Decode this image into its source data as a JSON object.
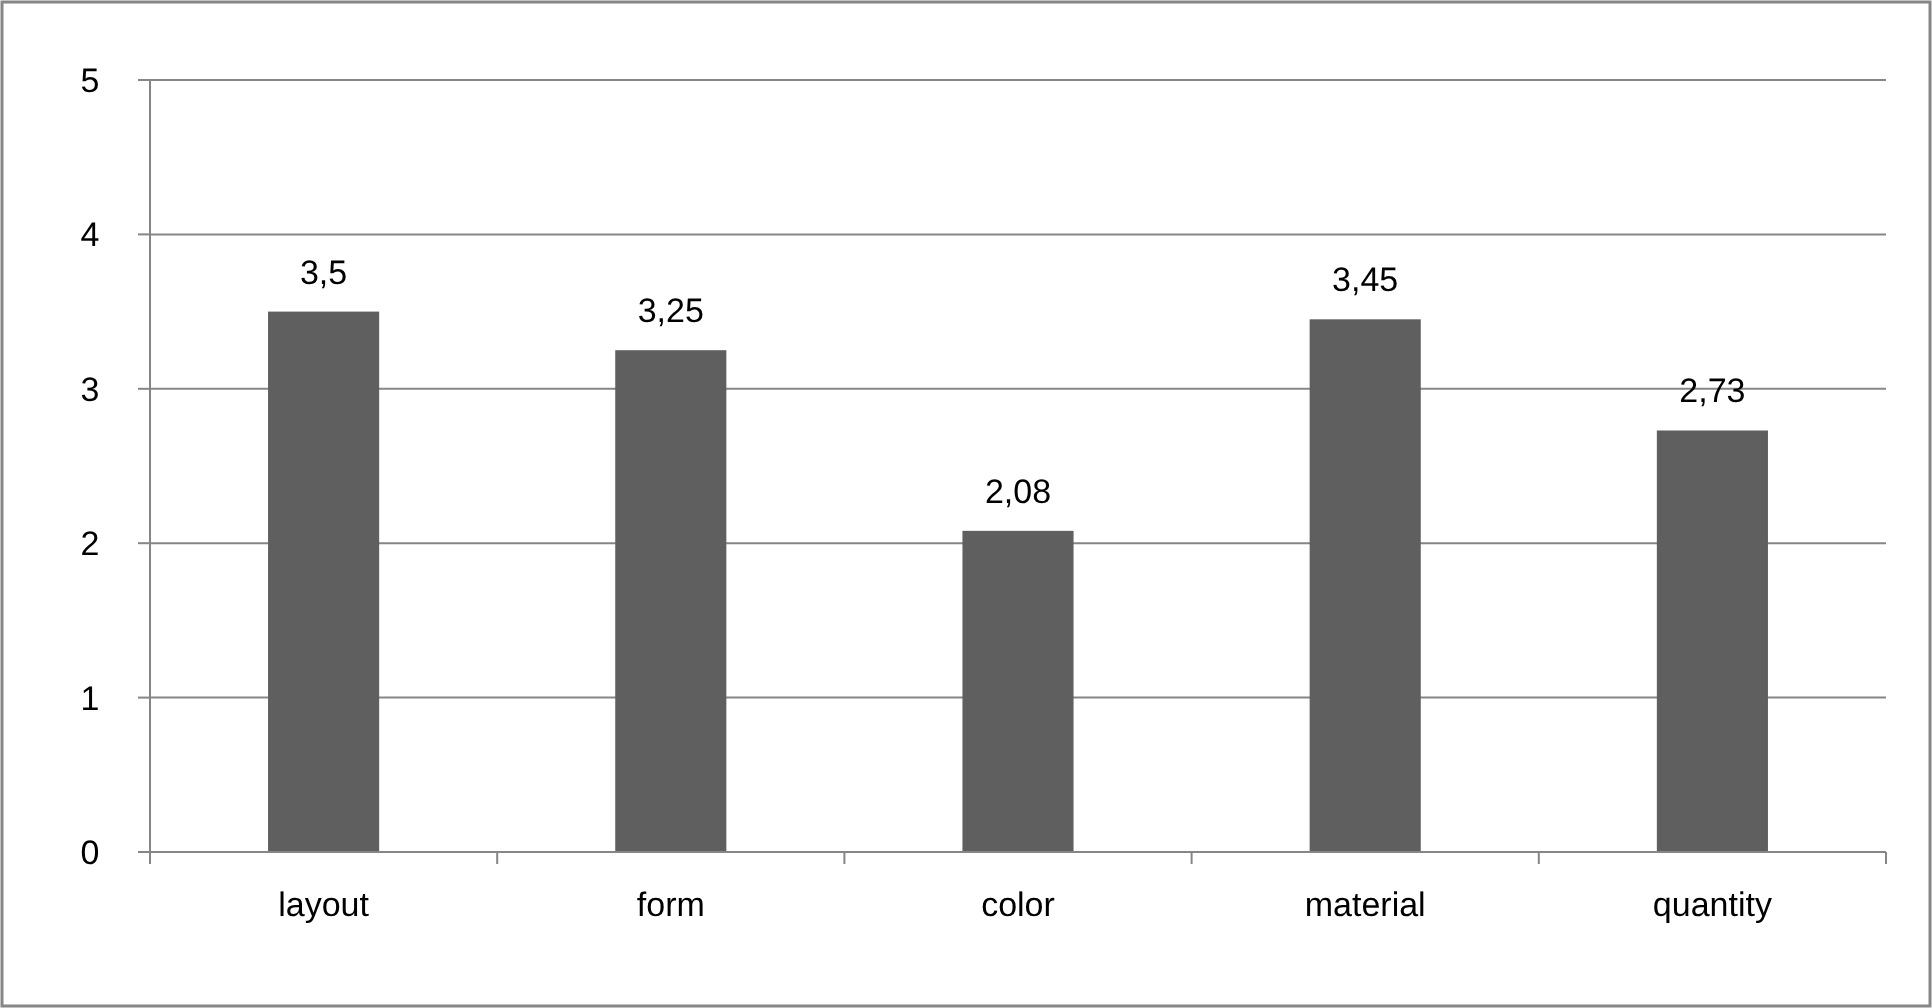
{
  "chart_data": {
    "type": "bar",
    "categories": [
      "layout",
      "form",
      "color",
      "material",
      "quantity"
    ],
    "values": [
      3.5,
      3.25,
      2.08,
      3.45,
      2.73
    ],
    "value_labels": [
      "3,5",
      "3,25",
      "2,08",
      "3,45",
      "2,73"
    ],
    "color": "#5f5f5f",
    "ylim": [
      0,
      5
    ],
    "yticks": [
      0,
      1,
      2,
      3,
      4,
      5
    ],
    "grid": "y"
  }
}
